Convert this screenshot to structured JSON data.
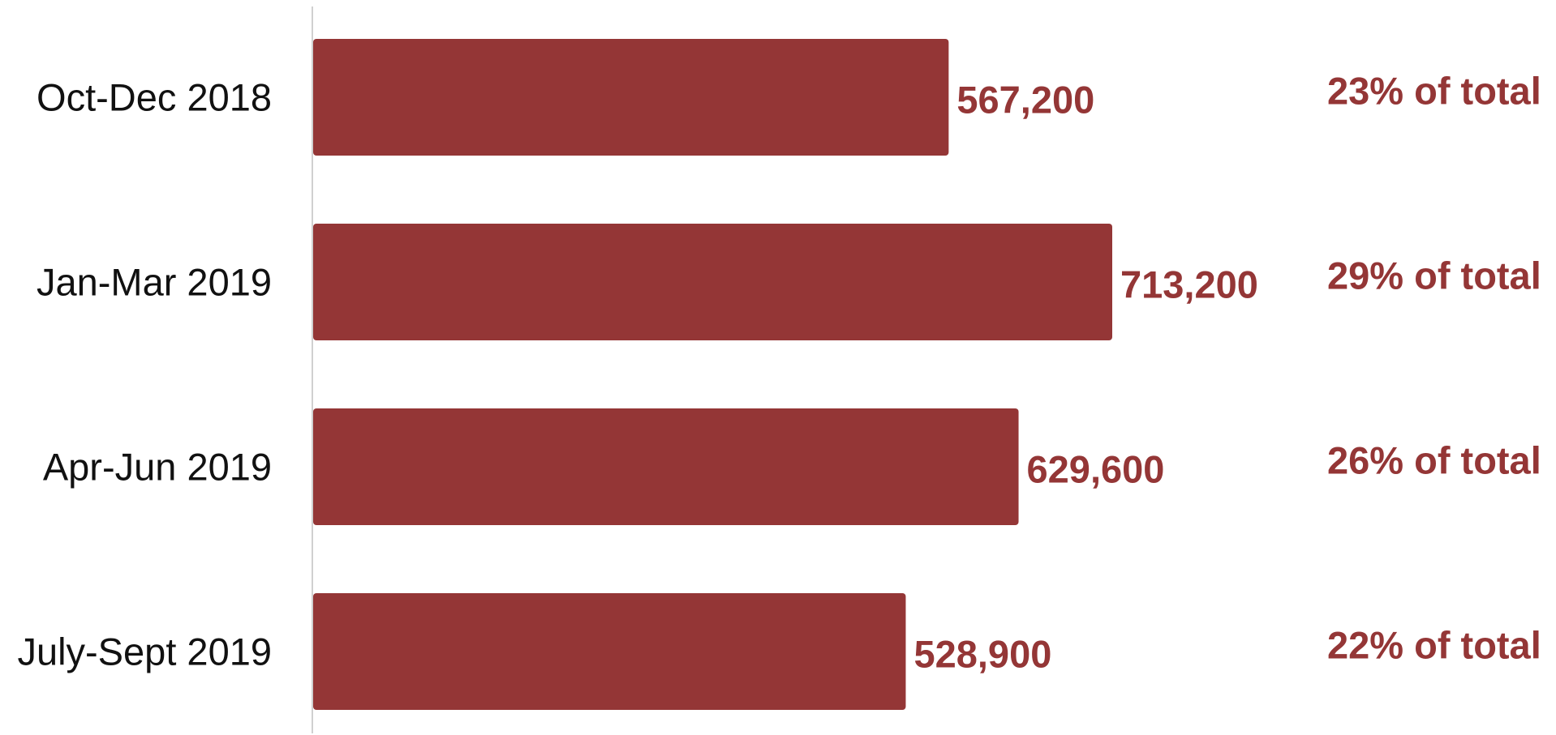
{
  "chart_data": {
    "type": "bar",
    "orientation": "horizontal",
    "title": "",
    "xlabel": "",
    "ylabel": "",
    "categories": [
      "Oct-Dec 2018",
      "Jan-Mar 2019",
      "Apr-Jun 2019",
      "July-Sept 2019"
    ],
    "values": [
      567200,
      713200,
      629600,
      528900
    ],
    "value_labels": [
      "567,200",
      "713,200",
      "629,600",
      "528,900"
    ],
    "share_labels": [
      "23% of total",
      "29% of total",
      "26% of total",
      "22% of total"
    ],
    "xlim": [
      0,
      713200
    ],
    "grid": false,
    "legend": "none"
  },
  "colors": {
    "bar": "#943636",
    "value_text": "#943636",
    "share_text": "#943636",
    "category_text": "#111111",
    "axis_line": "#d0d0d0"
  }
}
